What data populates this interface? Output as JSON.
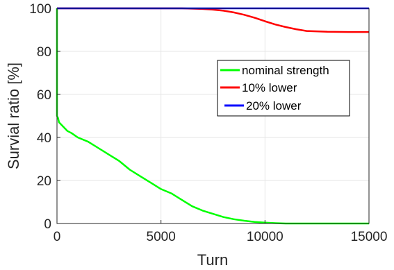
{
  "chart_data": {
    "type": "line",
    "title": "",
    "xlabel": "Turn",
    "ylabel": "Survial ratio [%]",
    "xlim": [
      0,
      15000
    ],
    "ylim": [
      0,
      100
    ],
    "xticks": [
      0,
      5000,
      10000,
      15000
    ],
    "yticks": [
      0,
      20,
      40,
      60,
      80,
      100
    ],
    "xtick_labels": [
      "0",
      "5000",
      "10000",
      "15000"
    ],
    "ytick_labels": [
      "0",
      "20",
      "40",
      "60",
      "80",
      "100"
    ],
    "grid": true,
    "legend_position": "right-center",
    "series": [
      {
        "name": "nominal strength",
        "color": "#00ff00",
        "x": [
          0,
          0,
          50,
          100,
          200,
          300,
          500,
          700,
          1000,
          1500,
          2000,
          2500,
          3000,
          3500,
          4000,
          4500,
          5000,
          5500,
          6000,
          6500,
          7000,
          7500,
          8000,
          8500,
          9000,
          9500,
          10000,
          10500,
          11000,
          11500,
          12000,
          13000,
          14000,
          15000
        ],
        "y": [
          100,
          50,
          49,
          47,
          46,
          45,
          43,
          42,
          40,
          38,
          35,
          32,
          29,
          25,
          22,
          19,
          16,
          14,
          11,
          8,
          6,
          4.5,
          3,
          2,
          1.3,
          0.7,
          0.4,
          0.15,
          0,
          0,
          0,
          0,
          0,
          0
        ]
      },
      {
        "name": "10% lower",
        "color": "#ff0000",
        "x": [
          0,
          4600,
          5000,
          6000,
          7000,
          7500,
          8000,
          8500,
          9000,
          9500,
          10000,
          10500,
          11000,
          11500,
          12000,
          13000,
          14000,
          15000
        ],
        "y": [
          100,
          100,
          100,
          100,
          99.7,
          99.4,
          98.9,
          98.1,
          97.0,
          95.6,
          94.0,
          92.5,
          91.3,
          90.3,
          89.5,
          89.1,
          89.0,
          89.0
        ]
      },
      {
        "name": "20% lower",
        "color": "#0000ff",
        "x": [
          0,
          15000
        ],
        "y": [
          100,
          100
        ]
      }
    ]
  }
}
